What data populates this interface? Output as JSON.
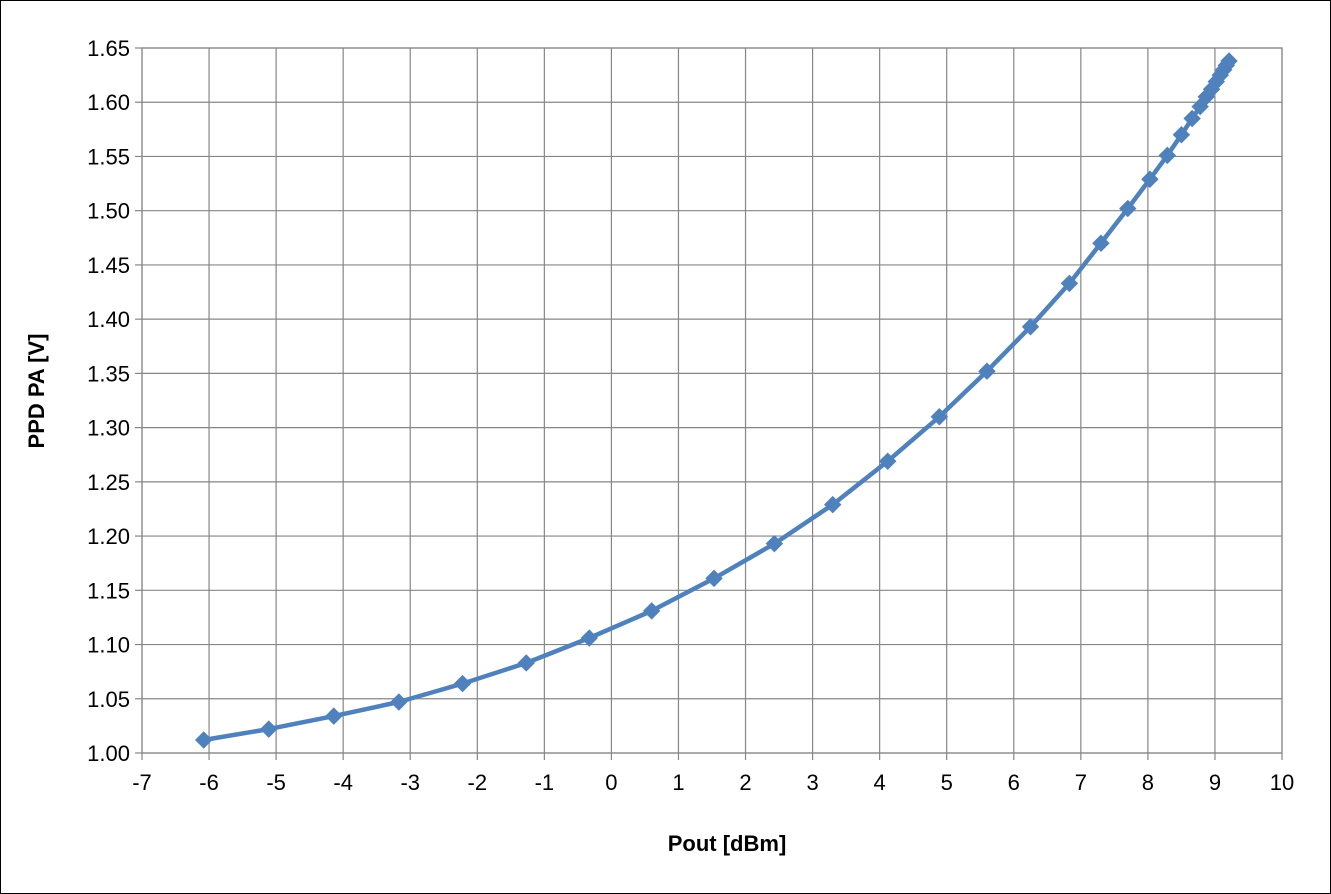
{
  "chart_data": {
    "type": "scatter",
    "title": "",
    "xlabel": "Pout [dBm]",
    "ylabel": "PPD PA [V]",
    "xlim": [
      -7,
      10
    ],
    "ylim": [
      1.0,
      1.65
    ],
    "x_ticks": [
      "-7",
      "-6",
      "-5",
      "-4",
      "-3",
      "-2",
      "-1",
      "0",
      "1",
      "2",
      "3",
      "4",
      "5",
      "6",
      "7",
      "8",
      "9",
      "10"
    ],
    "y_ticks": [
      "1.00",
      "1.05",
      "1.10",
      "1.15",
      "1.20",
      "1.25",
      "1.30",
      "1.35",
      "1.40",
      "1.45",
      "1.50",
      "1.55",
      "1.60",
      "1.65"
    ],
    "grid": true,
    "legend": "none",
    "line_color": "#4f81bd",
    "marker": "diamond",
    "series": [
      {
        "x": [
          -6.08,
          -5.11,
          -4.14,
          -3.17,
          -2.22,
          -1.27,
          -0.33,
          0.6,
          1.53,
          2.43,
          3.3,
          4.12,
          4.89,
          5.6,
          6.25,
          6.83,
          7.3,
          7.7,
          8.03,
          8.29,
          8.5,
          8.66,
          8.78,
          8.87,
          8.95,
          9.02,
          9.08,
          9.13,
          9.17,
          9.21
        ],
        "y": [
          1.012,
          1.022,
          1.034,
          1.047,
          1.064,
          1.083,
          1.106,
          1.131,
          1.161,
          1.193,
          1.229,
          1.269,
          1.31,
          1.352,
          1.393,
          1.433,
          1.47,
          1.502,
          1.529,
          1.551,
          1.57,
          1.585,
          1.596,
          1.605,
          1.612,
          1.619,
          1.625,
          1.63,
          1.634,
          1.638
        ]
      }
    ]
  }
}
